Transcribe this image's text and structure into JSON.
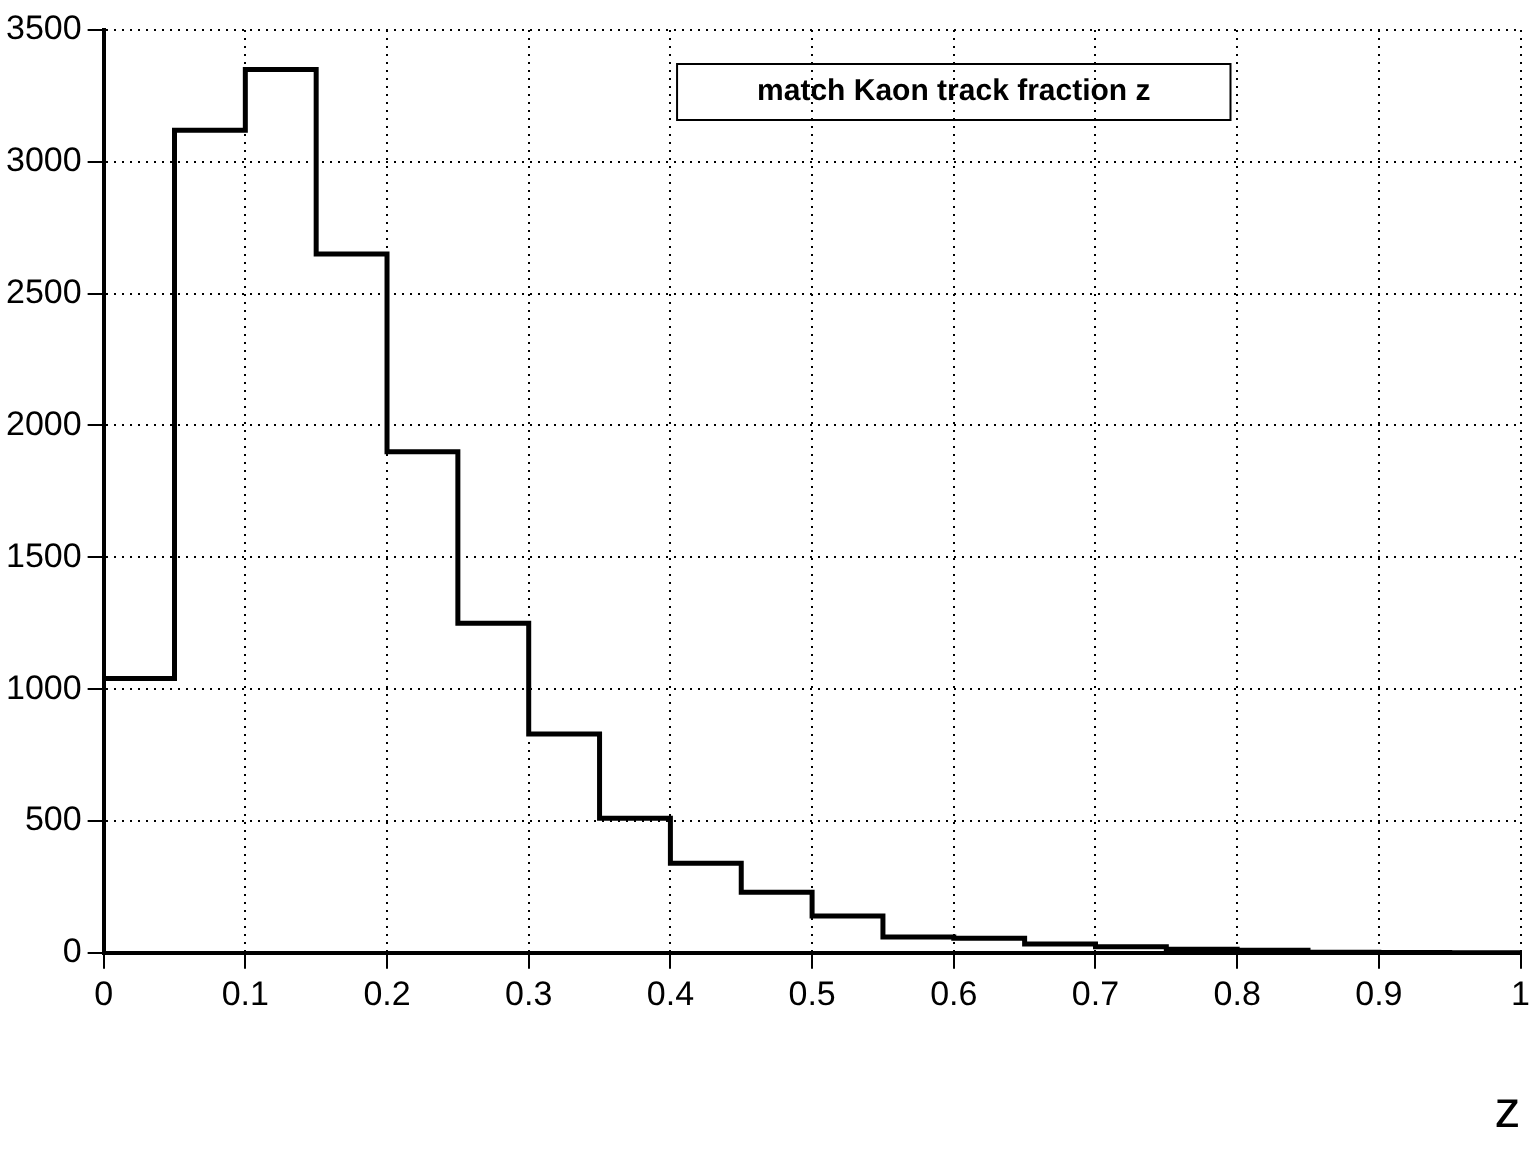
{
  "chart_data": {
    "type": "histogram",
    "title": "match Kaon track fraction z",
    "xlabel": "z",
    "bins": [
      0,
      0.05,
      0.1,
      0.15,
      0.2,
      0.25,
      0.3,
      0.35,
      0.4,
      0.45,
      0.5,
      0.55,
      0.6,
      0.65,
      0.7,
      0.75,
      0.8,
      0.85,
      0.9,
      0.95,
      1
    ],
    "values": [
      1040,
      3120,
      3350,
      2650,
      1900,
      1250,
      830,
      510,
      340,
      230,
      140,
      60,
      55,
      33,
      23,
      13,
      10,
      2,
      1,
      0
    ],
    "color": "#000000",
    "xlim": [
      0,
      1
    ],
    "xticks": [
      0,
      0.1,
      0.2,
      0.3,
      0.4,
      0.5,
      0.6,
      0.7,
      0.8,
      0.9,
      1
    ],
    "ylim": [
      0,
      3500
    ],
    "yticks": [
      0,
      500,
      1000,
      1500,
      2000,
      2500,
      3000,
      3500
    ],
    "grid": true,
    "legend": false
  }
}
